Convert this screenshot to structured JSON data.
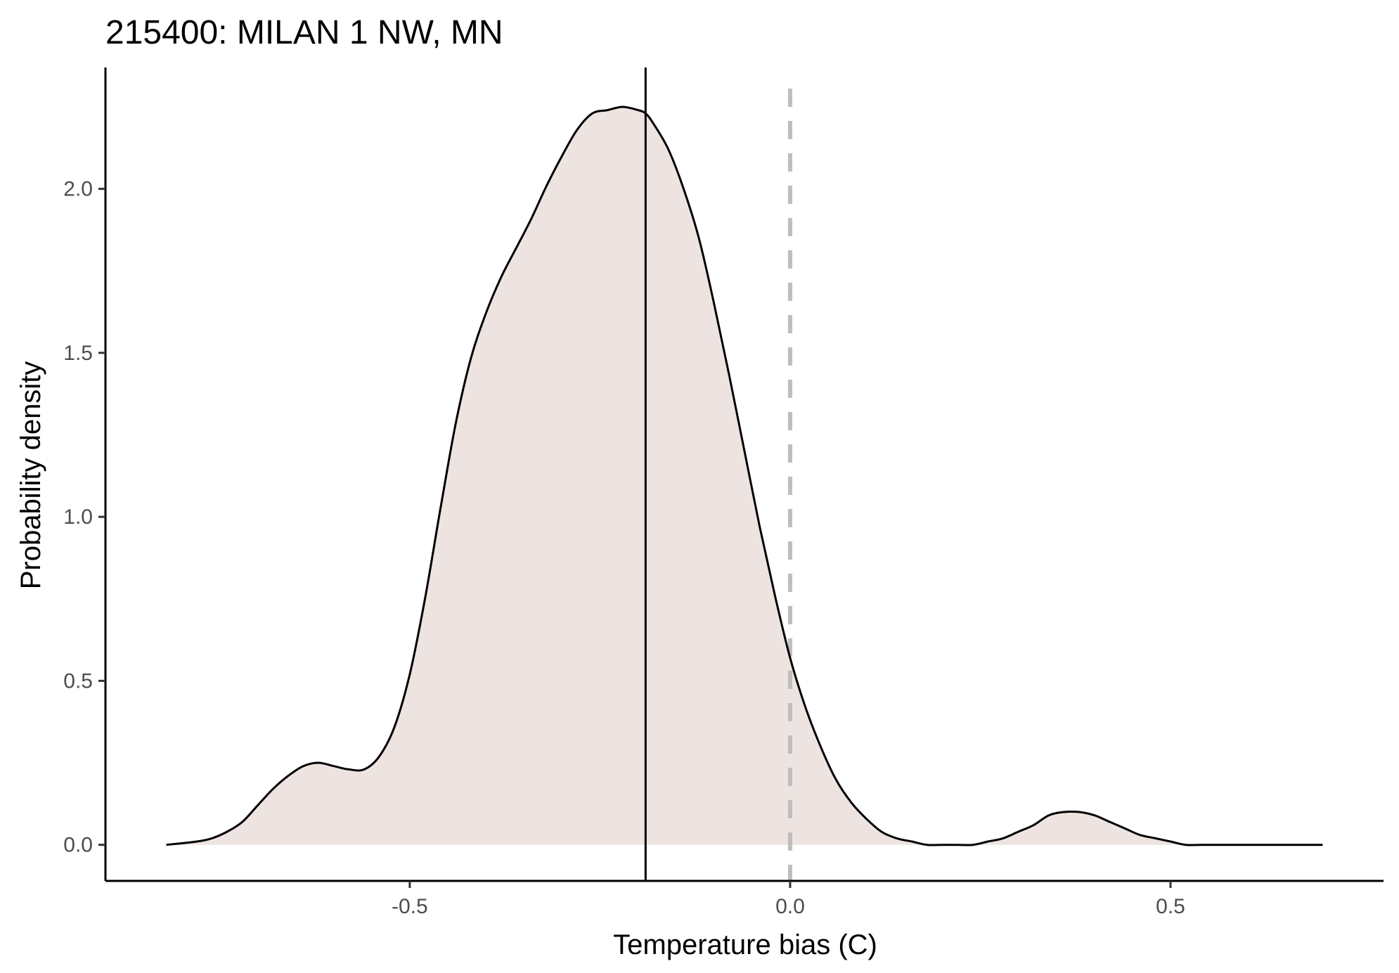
{
  "chart_data": {
    "type": "area",
    "title": "215400: MILAN 1 NW, MN",
    "xlabel": "Temperature bias (C)",
    "ylabel": "Probability density",
    "xlim": [
      -0.9,
      0.78
    ],
    "ylim": [
      -0.11,
      2.37
    ],
    "x_ticks": [
      -0.5,
      0.0,
      0.5
    ],
    "x_tick_labels": [
      "-0.5",
      "0.0",
      "0.5"
    ],
    "y_ticks": [
      0.0,
      0.5,
      1.0,
      1.5,
      2.0
    ],
    "y_tick_labels": [
      "0.0",
      "0.5",
      "1.0",
      "1.5",
      "2.0"
    ],
    "grid": false,
    "fill_color": "#ede4e1",
    "line_color": "#000000",
    "zero_line_color": "#bebebe",
    "mean_line_x": -0.19,
    "zero_line_x": 0.0,
    "series": [
      {
        "x": [
          -0.82,
          -0.78,
          -0.76,
          -0.74,
          -0.72,
          -0.7,
          -0.68,
          -0.66,
          -0.64,
          -0.62,
          -0.6,
          -0.58,
          -0.56,
          -0.54,
          -0.52,
          -0.5,
          -0.48,
          -0.46,
          -0.44,
          -0.42,
          -0.4,
          -0.38,
          -0.36,
          -0.34,
          -0.32,
          -0.3,
          -0.28,
          -0.26,
          -0.24,
          -0.22,
          -0.2,
          -0.19,
          -0.18,
          -0.16,
          -0.14,
          -0.12,
          -0.1,
          -0.08,
          -0.06,
          -0.04,
          -0.02,
          0.0,
          0.02,
          0.04,
          0.06,
          0.08,
          0.1,
          0.12,
          0.14,
          0.16,
          0.18,
          0.2,
          0.22,
          0.24,
          0.26,
          0.28,
          0.3,
          0.32,
          0.34,
          0.36,
          0.38,
          0.4,
          0.42,
          0.44,
          0.46,
          0.48,
          0.5,
          0.52,
          0.54,
          0.56,
          0.58,
          0.6,
          0.62,
          0.64,
          0.66,
          0.68,
          0.7
        ],
        "y": [
          0.0,
          0.01,
          0.02,
          0.04,
          0.07,
          0.12,
          0.17,
          0.21,
          0.24,
          0.25,
          0.24,
          0.23,
          0.23,
          0.27,
          0.36,
          0.52,
          0.75,
          1.02,
          1.28,
          1.48,
          1.62,
          1.73,
          1.82,
          1.91,
          2.01,
          2.1,
          2.18,
          2.23,
          2.24,
          2.25,
          2.24,
          2.23,
          2.2,
          2.12,
          2.0,
          1.85,
          1.65,
          1.43,
          1.2,
          0.97,
          0.76,
          0.57,
          0.42,
          0.3,
          0.2,
          0.13,
          0.08,
          0.04,
          0.02,
          0.01,
          0.0,
          0.0,
          0.0,
          0.0,
          0.01,
          0.02,
          0.04,
          0.06,
          0.09,
          0.1,
          0.1,
          0.09,
          0.07,
          0.05,
          0.03,
          0.02,
          0.01,
          0.0,
          0.0,
          0.0,
          0.0,
          0.0,
          0.0,
          0.0,
          0.0,
          0.0,
          0.0
        ]
      }
    ]
  }
}
